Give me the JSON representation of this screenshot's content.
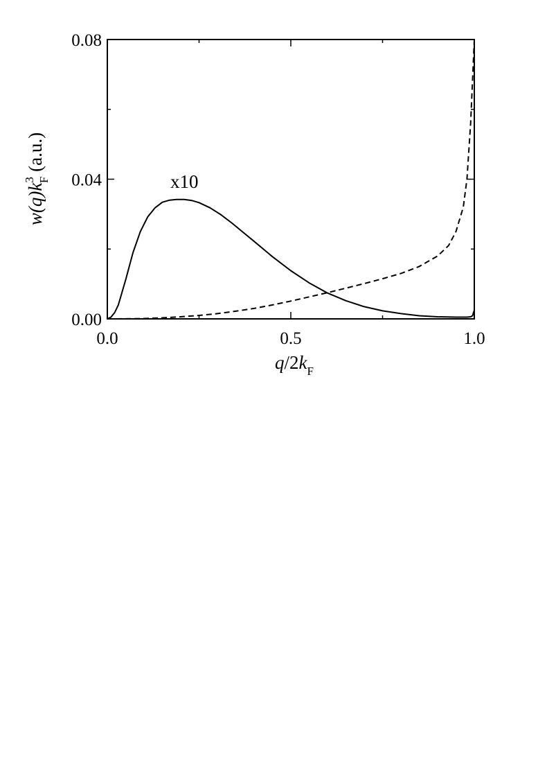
{
  "chart_data": {
    "type": "line",
    "xlabel": {
      "main": "q",
      "mid": "/2",
      "var": "k",
      "sub": "F"
    },
    "ylabel": {
      "main": "w(q)",
      "var": "k",
      "sup": "3",
      "sub": "F",
      "units": " (a.u.)"
    },
    "xlim": [
      0.0,
      1.0
    ],
    "ylim": [
      0.0,
      0.08
    ],
    "xticks": [
      {
        "value": 0.0,
        "label": "0.0"
      },
      {
        "value": 0.5,
        "label": "0.5"
      },
      {
        "value": 1.0,
        "label": "1.0"
      }
    ],
    "yticks": [
      {
        "value": 0.0,
        "label": "0.00"
      },
      {
        "value": 0.04,
        "label": "0.04"
      },
      {
        "value": 0.08,
        "label": "0.08"
      }
    ],
    "xminor": [
      0.25,
      0.75
    ],
    "yminor": [
      0.02,
      0.06
    ],
    "grid": false,
    "legend": "none",
    "annotations": [
      {
        "text": "x10",
        "x": 0.21,
        "y": 0.0375
      }
    ],
    "series": [
      {
        "style": "solid",
        "x": [
          0.0,
          0.01,
          0.02,
          0.03,
          0.05,
          0.07,
          0.09,
          0.11,
          0.13,
          0.15,
          0.17,
          0.19,
          0.21,
          0.23,
          0.25,
          0.28,
          0.31,
          0.34,
          0.37,
          0.4,
          0.45,
          0.5,
          0.55,
          0.6,
          0.65,
          0.7,
          0.75,
          0.8,
          0.85,
          0.9,
          0.95,
          0.98,
          0.99,
          0.995,
          1.0
        ],
        "y": [
          0.0,
          0.0005,
          0.0018,
          0.004,
          0.0112,
          0.019,
          0.025,
          0.0292,
          0.0318,
          0.0334,
          0.034,
          0.0342,
          0.0342,
          0.0339,
          0.0333,
          0.0318,
          0.0298,
          0.0274,
          0.0248,
          0.0222,
          0.0178,
          0.0138,
          0.0103,
          0.0074,
          0.0052,
          0.0035,
          0.0023,
          0.0015,
          0.0009,
          0.0006,
          0.0005,
          0.0005,
          0.0006,
          0.0009,
          0.0025
        ]
      },
      {
        "style": "dashed",
        "x": [
          0.0,
          0.05,
          0.1,
          0.15,
          0.2,
          0.25,
          0.3,
          0.35,
          0.4,
          0.45,
          0.5,
          0.55,
          0.6,
          0.65,
          0.7,
          0.75,
          0.8,
          0.85,
          0.9,
          0.93,
          0.95,
          0.97,
          0.98,
          0.99,
          0.995,
          1.0
        ],
        "y": [
          0.0,
          2e-05,
          0.0001,
          0.0003,
          0.0006,
          0.001,
          0.0015,
          0.0022,
          0.003,
          0.004,
          0.0051,
          0.0063,
          0.0075,
          0.0088,
          0.0101,
          0.0115,
          0.013,
          0.015,
          0.018,
          0.021,
          0.025,
          0.032,
          0.04,
          0.056,
          0.068,
          0.08
        ]
      }
    ]
  }
}
